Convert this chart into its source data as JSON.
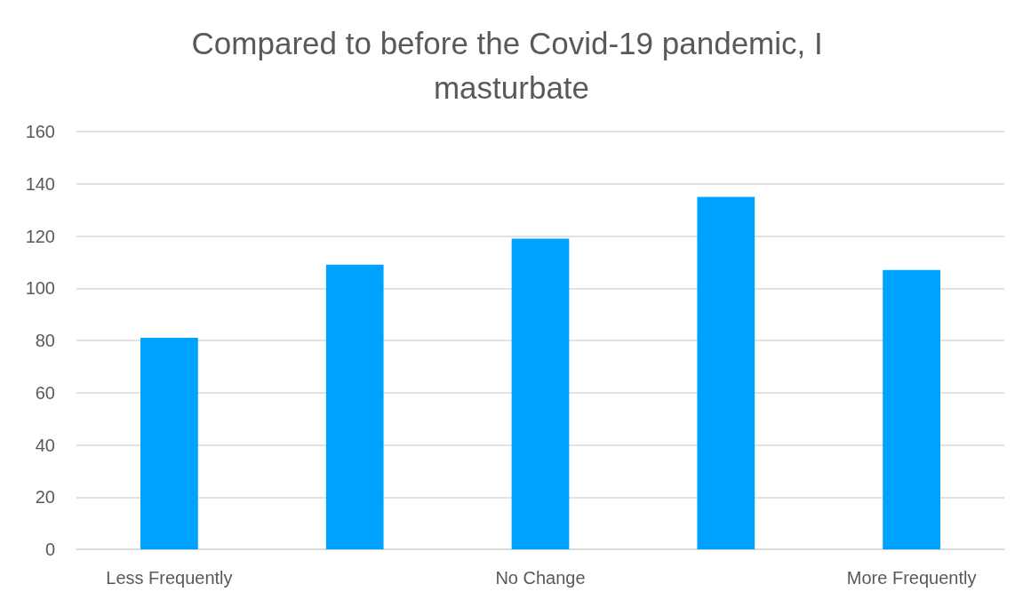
{
  "chart_data": {
    "type": "bar",
    "title": "Compared to before the Covid-19 pandemic, I masturbate",
    "categories": [
      "Less Frequently",
      null,
      "No Change",
      null,
      "More Frequently"
    ],
    "values": [
      81,
      109,
      119,
      135,
      107
    ],
    "color": "#00a2ff",
    "ylim": [
      0,
      160
    ],
    "yticks": [
      0,
      20,
      40,
      60,
      80,
      100,
      120,
      140,
      160
    ],
    "grid": "y"
  }
}
